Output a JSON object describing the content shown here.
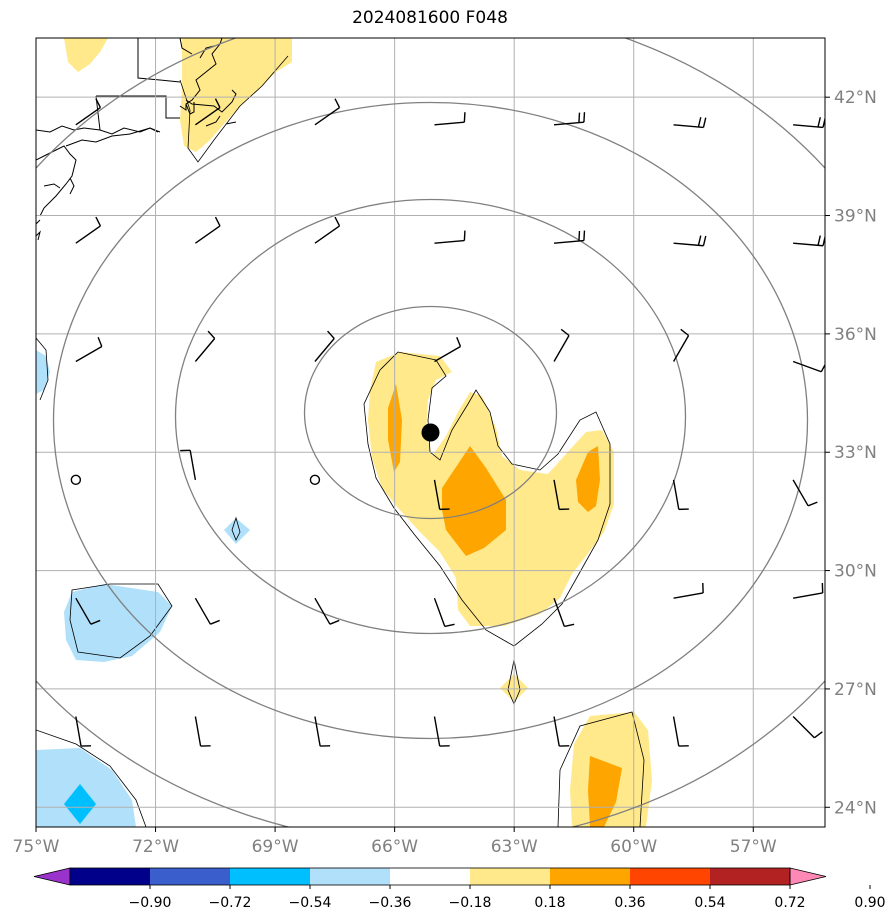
{
  "chart_data": {
    "type": "map-contour",
    "title": "2024081600 F048",
    "x_ticks": [
      "75°W",
      "72°W",
      "69°W",
      "66°W",
      "63°W",
      "60°W",
      "57°W"
    ],
    "x_values": [
      -75,
      -72,
      -69,
      -66,
      -63,
      -60,
      -57
    ],
    "y_ticks": [
      "24°N",
      "27°N",
      "30°N",
      "33°N",
      "36°N",
      "39°N",
      "42°N"
    ],
    "y_values": [
      24,
      27,
      30,
      33,
      36,
      39,
      42
    ],
    "xlim": [
      -75,
      -55.2
    ],
    "ylim": [
      23.5,
      43.5
    ],
    "grid": true,
    "storm_center": {
      "lon": -65.1,
      "lat": 33.5
    },
    "colorbar": {
      "levels": [
        "−0.90",
        "−0.72",
        "−0.54",
        "−0.36",
        "−0.18",
        "0.18",
        "0.36",
        "0.54",
        "0.72",
        "0.90"
      ],
      "colors": [
        "#9933cc",
        "#00008b",
        "#3a5fcd",
        "#00bfff",
        "#b0e0fa",
        "#ffffff",
        "#ffe98a",
        "#ffa500",
        "#ff4500",
        "#b22222",
        "#ff88b4"
      ],
      "extend": "both"
    },
    "colors": {
      "grid": "#b0b0b0",
      "range_rings": "#808080",
      "coast": "#000000"
    }
  }
}
